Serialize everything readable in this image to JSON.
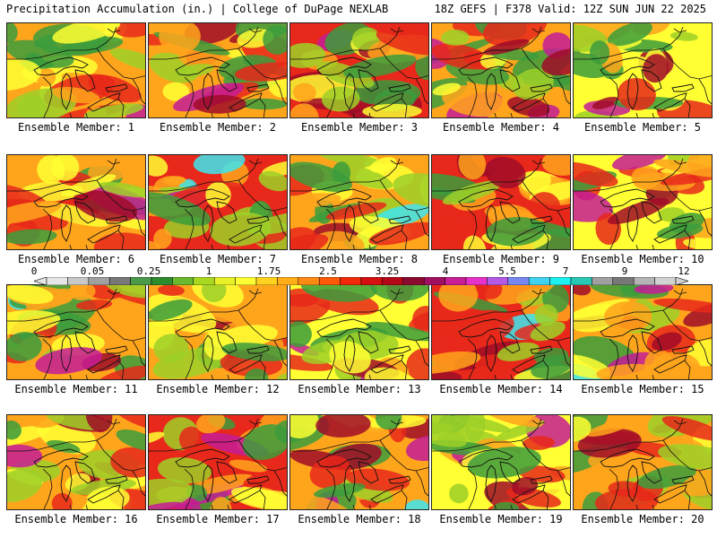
{
  "header": {
    "left": "Precipitation Accumulation (in.) | College of DuPage NEXLAB",
    "right": "18Z GEFS | F378 Valid: 12Z SUN JUN 22 2025"
  },
  "panels": [
    {
      "caption": "Ensemble Member: 1"
    },
    {
      "caption": "Ensemble Member: 2"
    },
    {
      "caption": "Ensemble Member: 3"
    },
    {
      "caption": "Ensemble Member: 4"
    },
    {
      "caption": "Ensemble Member: 5"
    },
    {
      "caption": "Ensemble Member: 6"
    },
    {
      "caption": "Ensemble Member: 7"
    },
    {
      "caption": "Ensemble Member: 8"
    },
    {
      "caption": "Ensemble Member: 9"
    },
    {
      "caption": "Ensemble Member: 10"
    },
    {
      "caption": "Ensemble Member: 11"
    },
    {
      "caption": "Ensemble Member: 12"
    },
    {
      "caption": "Ensemble Member: 13"
    },
    {
      "caption": "Ensemble Member: 14"
    },
    {
      "caption": "Ensemble Member: 15"
    },
    {
      "caption": "Ensemble Member: 16"
    },
    {
      "caption": "Ensemble Member: 17"
    },
    {
      "caption": "Ensemble Member: 18"
    },
    {
      "caption": "Ensemble Member: 19"
    },
    {
      "caption": "Ensemble Member: 20"
    }
  ],
  "colorbar": {
    "labels": [
      "0",
      "0.05",
      "0.25",
      "1",
      "1.75",
      "2.5",
      "3.25",
      "4",
      "5.5",
      "7",
      "9",
      "12"
    ],
    "colors": [
      "#e6e6e6",
      "#c8c8c8",
      "#a0a0a0",
      "#787878",
      "#4a9a4a",
      "#2e8b2e",
      "#6ab82e",
      "#a8d820",
      "#e8f028",
      "#ffff33",
      "#ffd21f",
      "#ffae19",
      "#ff8a14",
      "#ff5a0a",
      "#f02a0a",
      "#d41010",
      "#b40818",
      "#8c0a30",
      "#a01060",
      "#c81e96",
      "#e632c8",
      "#b45ae6",
      "#7888f0",
      "#40d2f0",
      "#1ef0f0",
      "#28c8b4",
      "#a0a0a0",
      "#787878",
      "#b4b4b4",
      "#d2d2d2"
    ]
  },
  "precip_colors": {
    "green": "#3c9c3c",
    "lightgreen": "#9ed028",
    "yellow": "#ffff33",
    "orange": "#ffa51c",
    "red": "#e8281a",
    "darkred": "#a00c28",
    "magenta": "#c41c96",
    "cyan": "#3ce6f0"
  }
}
